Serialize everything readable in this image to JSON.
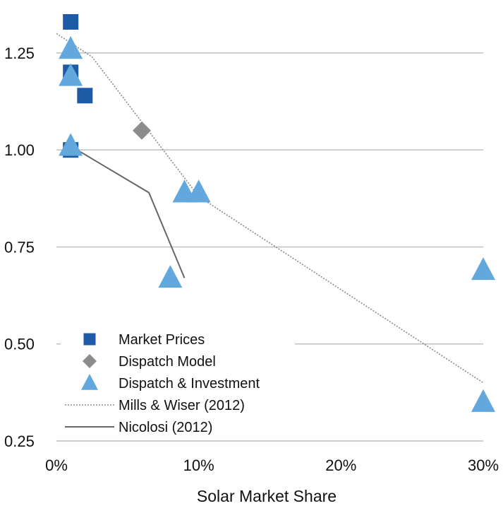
{
  "chart_data": {
    "type": "scatter",
    "title": "",
    "xlabel": "Solar Market Share",
    "ylabel": "",
    "xlim": [
      0,
      30
    ],
    "ylim": [
      0.25,
      1.35
    ],
    "x_ticks": [
      0,
      10,
      20,
      30
    ],
    "x_tick_labels": [
      "0%",
      "10%",
      "20%",
      "30%"
    ],
    "y_ticks": [
      0.25,
      0.5,
      0.75,
      1.0,
      1.25
    ],
    "y_tick_labels": [
      "0.25",
      "0.50",
      "0.75",
      "1.00",
      "1.25"
    ],
    "grid": "horizontal",
    "legend_position": "bottom-left",
    "colors": {
      "market_prices": "#1f5aa6",
      "dispatch_model": "#8c8c8c",
      "dispatch_investment": "#62a8dc",
      "mills_wiser": "#8a8a8a",
      "nicolosi": "#666666",
      "grid": "#bfbfbf"
    },
    "series": [
      {
        "name": "Market Prices",
        "type": "scatter",
        "marker": "square",
        "points": [
          {
            "x": 1.0,
            "y": 1.33
          },
          {
            "x": 1.0,
            "y": 1.2
          },
          {
            "x": 2.0,
            "y": 1.14
          },
          {
            "x": 1.0,
            "y": 1.0
          }
        ]
      },
      {
        "name": "Dispatch Model",
        "type": "scatter",
        "marker": "diamond",
        "points": [
          {
            "x": 6.0,
            "y": 1.05
          }
        ]
      },
      {
        "name": "Dispatch & Investment",
        "type": "scatter",
        "marker": "triangle",
        "points": [
          {
            "x": 1.0,
            "y": 1.26
          },
          {
            "x": 1.0,
            "y": 1.19
          },
          {
            "x": 1.0,
            "y": 1.01
          },
          {
            "x": 9.0,
            "y": 0.89
          },
          {
            "x": 10.0,
            "y": 0.89
          },
          {
            "x": 8.0,
            "y": 0.67
          },
          {
            "x": 30.0,
            "y": 0.69
          },
          {
            "x": 30.0,
            "y": 0.35
          }
        ]
      },
      {
        "name": "Mills & Wiser (2012)",
        "type": "line",
        "style": "dotted",
        "points": [
          {
            "x": 0.0,
            "y": 1.3
          },
          {
            "x": 2.5,
            "y": 1.24
          },
          {
            "x": 10.0,
            "y": 0.88
          },
          {
            "x": 30.0,
            "y": 0.4
          }
        ]
      },
      {
        "name": "Nicolosi (2012)",
        "type": "line",
        "style": "solid",
        "points": [
          {
            "x": 1.0,
            "y": 1.01
          },
          {
            "x": 6.5,
            "y": 0.89
          },
          {
            "x": 9.0,
            "y": 0.67
          }
        ]
      }
    ]
  }
}
